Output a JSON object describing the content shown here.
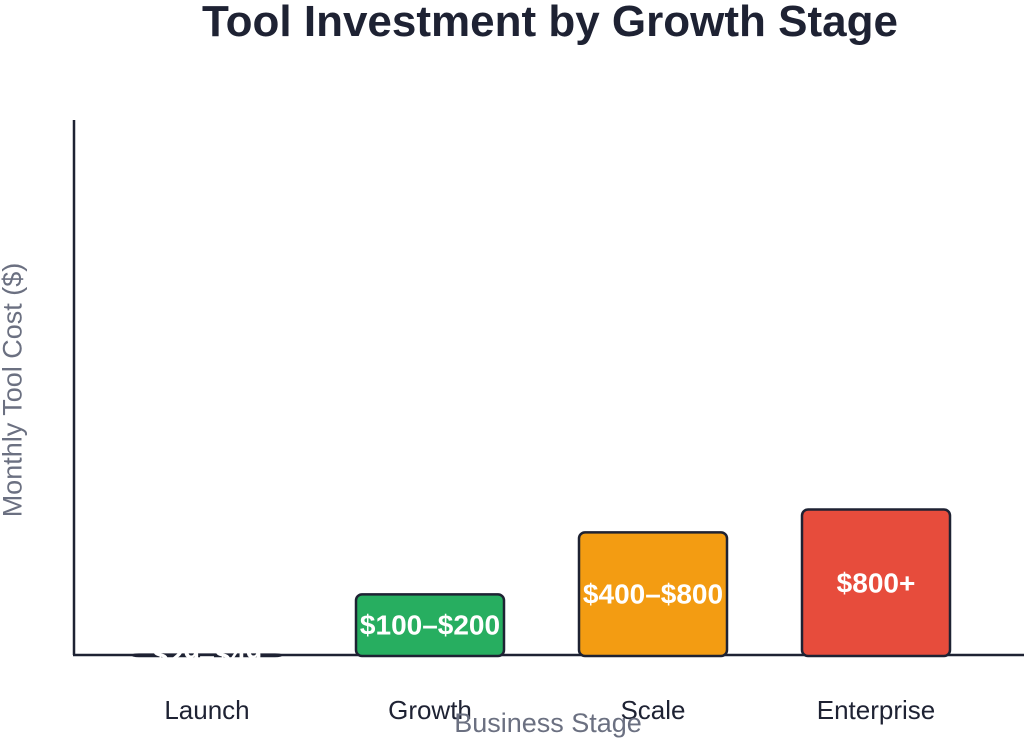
{
  "chart_data": {
    "type": "bar",
    "title": "Tool Investment by Growth Stage",
    "xlabel": "Business Stage",
    "ylabel": "Monthly Tool Cost ($)",
    "categories": [
      "Launch",
      "Growth",
      "Scale",
      "Enterprise"
    ],
    "values": [
      39,
      150,
      600,
      1000
    ],
    "value_labels": [
      "$29–$49",
      "$100–$200",
      "$400–$800",
      "$800+"
    ],
    "colors": [
      "#2e9cc9",
      "#27ae60",
      "#f39c12",
      "#e74c3c"
    ],
    "scale": "log",
    "grid": false
  }
}
